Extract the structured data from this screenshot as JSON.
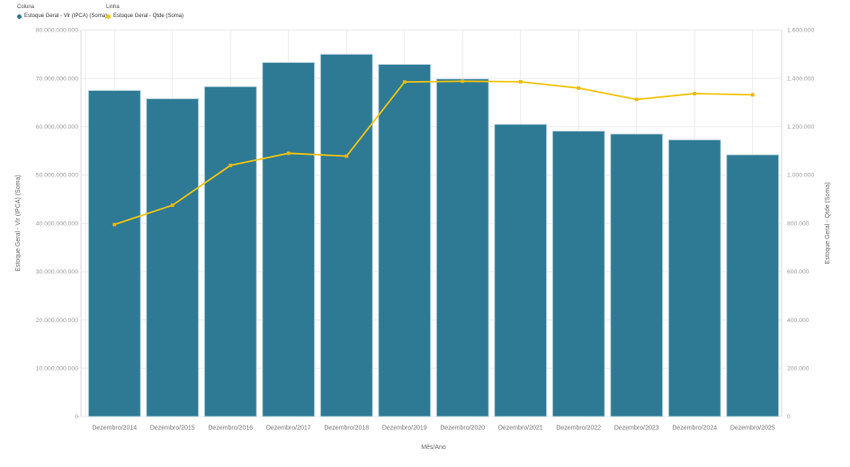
{
  "legend": {
    "groups": [
      {
        "title": "Coluna",
        "swatch": "bar",
        "label": "Estoque Geral - Vlr (IPCA) (Soma)"
      },
      {
        "title": "Linha",
        "swatch": "line",
        "label": "Estoque Geral - Qtde (Soma)"
      }
    ]
  },
  "chart_data": {
    "type": "bar+line",
    "categories": [
      "Dezembro/2014",
      "Dezembro/2015",
      "Dezembro/2016",
      "Dezembro/2017",
      "Dezembro/2018",
      "Dezembro/2019",
      "Dezembro/2020",
      "Dezembro/2021",
      "Dezembro/2022",
      "Dezembro/2023",
      "Dezembro/2024",
      "Dezembro/2025"
    ],
    "series": [
      {
        "name": "Estoque Geral - Vlr (IPCA) (Soma)",
        "type": "bar",
        "axis": "left",
        "values": [
          67500000000,
          65800000000,
          68300000000,
          73300000000,
          75000000000,
          72900000000,
          69900000000,
          60500000000,
          59100000000,
          58500000000,
          57300000000,
          54200000000
        ]
      },
      {
        "name": "Estoque Geral - Qtde (Soma)",
        "type": "line",
        "axis": "right",
        "values": [
          795000,
          875000,
          1040000,
          1090000,
          1078000,
          1385000,
          1388000,
          1386000,
          1360000,
          1313000,
          1337000,
          1332000
        ]
      }
    ],
    "left_axis": {
      "title": "Estoque Geral - Vlr (IPCA) (Soma)",
      "min": 0,
      "max": 80000000000,
      "tick_step": 10000000000
    },
    "right_axis": {
      "title": "Estoque Geral - Qtde (Soma)",
      "min": 0,
      "max": 1600000,
      "tick_step": 200000
    },
    "xlabel": "Mês/Ano",
    "grid": true,
    "legend_position": "top-left",
    "number_format": "thousands-dot",
    "colors": {
      "bar": "#2E7A94",
      "bar_border": "#C6DCE6",
      "line": "#F2C411",
      "marker": "#E7BA0E",
      "grid": "#ECECEC",
      "axis_line": "#DADADA",
      "tick_text": "#9B9B9B",
      "label_text": "#757575",
      "axis_title_text": "#666666"
    }
  }
}
